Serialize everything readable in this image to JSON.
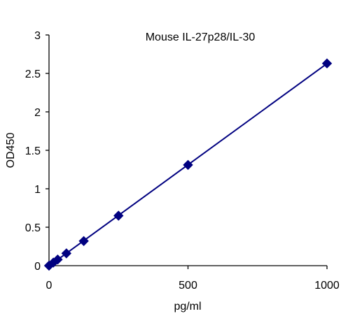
{
  "chart_data": {
    "type": "scatter",
    "title": "Mouse IL-27p28/IL-30",
    "xlabel": "pg/ml",
    "ylabel": "OD450",
    "xlim": [
      0,
      1000
    ],
    "ylim": [
      0,
      3
    ],
    "x_ticks": [
      0,
      500,
      1000
    ],
    "y_ticks": [
      0,
      0.5,
      1,
      1.5,
      2,
      2.5,
      3
    ],
    "x_tick_labels": [
      "0",
      "500",
      "1000"
    ],
    "y_tick_labels": [
      "0",
      "0.5",
      "1",
      "1.5",
      "2",
      "2.5",
      "3"
    ],
    "grid": false,
    "legend": false,
    "marker": "diamond",
    "trendline": "linear",
    "series_color": "#000080",
    "series": [
      {
        "x": [
          0,
          15.6,
          31.25,
          62.5,
          125,
          250,
          500,
          1000
        ],
        "y": [
          0.0,
          0.04,
          0.08,
          0.16,
          0.32,
          0.65,
          1.31,
          2.63
        ]
      }
    ]
  }
}
